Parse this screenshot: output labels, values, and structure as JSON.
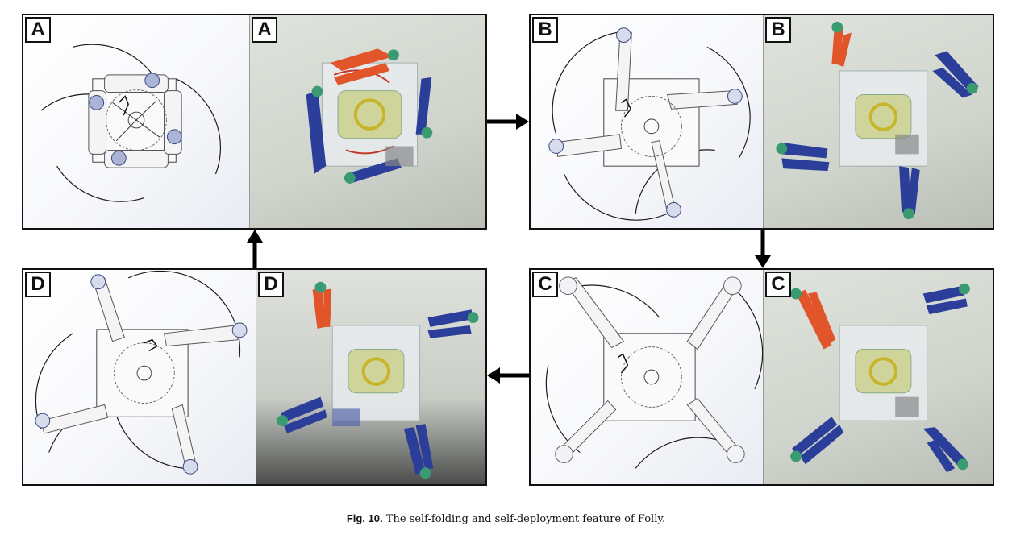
{
  "panels": [
    {
      "id": "A",
      "cad_label": "A",
      "photo_label": "A",
      "state": "folded"
    },
    {
      "id": "B",
      "cad_label": "B",
      "photo_label": "B",
      "state": "partially-deployed"
    },
    {
      "id": "C",
      "cad_label": "C",
      "photo_label": "C",
      "state": "deployed"
    },
    {
      "id": "D",
      "cad_label": "D",
      "photo_label": "D",
      "state": "partially-folded"
    }
  ],
  "caption": {
    "fig_label": "Fig. 10.",
    "text": " The self-folding and self-deployment feature of Folly."
  },
  "colors": {
    "frame": "#111111",
    "propeller_red": "#e2542a",
    "propeller_blue": "#2b3f9a",
    "motor_green": "#3a9b72",
    "arc_line": "#1a1a1a"
  }
}
